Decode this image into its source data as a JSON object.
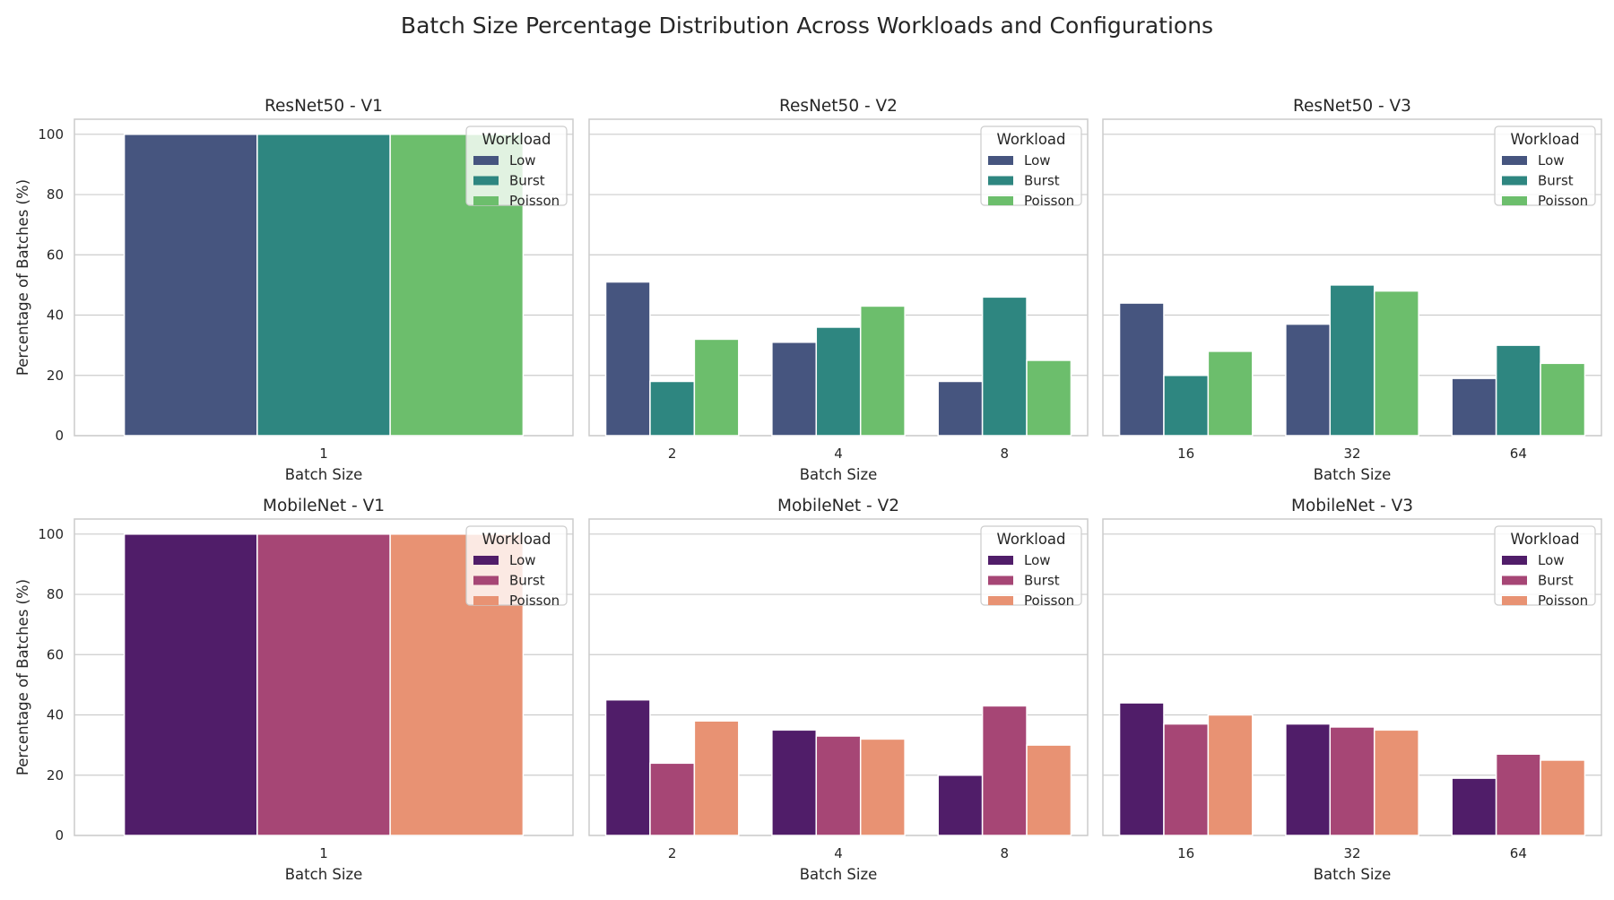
{
  "figure": {
    "title": "Batch Size Percentage Distribution Across Workloads and Configurations"
  },
  "chart_data": [
    {
      "type": "bar",
      "title": "ResNet50 - V1",
      "xlabel": "Batch Size",
      "ylabel": "Percentage of Batches (%)",
      "ylim": [
        0,
        105
      ],
      "yticks": [
        0,
        20,
        40,
        60,
        80,
        100
      ],
      "categories": [
        "1"
      ],
      "series": [
        {
          "name": "Low",
          "color": "#46557f",
          "values": [
            100
          ]
        },
        {
          "name": "Burst",
          "color": "#2e8680",
          "values": [
            100
          ]
        },
        {
          "name": "Poisson",
          "color": "#6cbe6c",
          "values": [
            100
          ]
        }
      ],
      "legend": {
        "title": "Workload",
        "position": "top-right"
      },
      "grid": true
    },
    {
      "type": "bar",
      "title": "ResNet50 - V2",
      "xlabel": "Batch Size",
      "ylabel": "",
      "ylim": [
        0,
        105
      ],
      "yticks": [
        0,
        20,
        40,
        60,
        80,
        100
      ],
      "categories": [
        "2",
        "4",
        "8"
      ],
      "series": [
        {
          "name": "Low",
          "color": "#46557f",
          "values": [
            51,
            31,
            18
          ]
        },
        {
          "name": "Burst",
          "color": "#2e8680",
          "values": [
            18,
            36,
            46
          ]
        },
        {
          "name": "Poisson",
          "color": "#6cbe6c",
          "values": [
            32,
            43,
            25
          ]
        }
      ],
      "legend": {
        "title": "Workload",
        "position": "top-right"
      },
      "grid": true
    },
    {
      "type": "bar",
      "title": "ResNet50 - V3",
      "xlabel": "Batch Size",
      "ylabel": "",
      "ylim": [
        0,
        105
      ],
      "yticks": [
        0,
        20,
        40,
        60,
        80,
        100
      ],
      "categories": [
        "16",
        "32",
        "64"
      ],
      "series": [
        {
          "name": "Low",
          "color": "#46557f",
          "values": [
            44,
            37,
            19
          ]
        },
        {
          "name": "Burst",
          "color": "#2e8680",
          "values": [
            20,
            50,
            30
          ]
        },
        {
          "name": "Poisson",
          "color": "#6cbe6c",
          "values": [
            28,
            48,
            24
          ]
        }
      ],
      "legend": {
        "title": "Workload",
        "position": "top-right"
      },
      "grid": true
    },
    {
      "type": "bar",
      "title": "MobileNet - V1",
      "xlabel": "Batch Size",
      "ylabel": "Percentage of Batches (%)",
      "ylim": [
        0,
        105
      ],
      "yticks": [
        0,
        20,
        40,
        60,
        80,
        100
      ],
      "categories": [
        "1"
      ],
      "series": [
        {
          "name": "Low",
          "color": "#501d69",
          "values": [
            100
          ]
        },
        {
          "name": "Burst",
          "color": "#a64675",
          "values": [
            100
          ]
        },
        {
          "name": "Poisson",
          "color": "#e89273",
          "values": [
            100
          ]
        }
      ],
      "legend": {
        "title": "Workload",
        "position": "top-right"
      },
      "grid": true
    },
    {
      "type": "bar",
      "title": "MobileNet - V2",
      "xlabel": "Batch Size",
      "ylabel": "",
      "ylim": [
        0,
        105
      ],
      "yticks": [
        0,
        20,
        40,
        60,
        80,
        100
      ],
      "categories": [
        "2",
        "4",
        "8"
      ],
      "series": [
        {
          "name": "Low",
          "color": "#501d69",
          "values": [
            45,
            35,
            20
          ]
        },
        {
          "name": "Burst",
          "color": "#a64675",
          "values": [
            24,
            33,
            43
          ]
        },
        {
          "name": "Poisson",
          "color": "#e89273",
          "values": [
            38,
            32,
            30
          ]
        }
      ],
      "legend": {
        "title": "Workload",
        "position": "top-right"
      },
      "grid": true
    },
    {
      "type": "bar",
      "title": "MobileNet - V3",
      "xlabel": "Batch Size",
      "ylabel": "",
      "ylim": [
        0,
        105
      ],
      "yticks": [
        0,
        20,
        40,
        60,
        80,
        100
      ],
      "categories": [
        "16",
        "32",
        "64"
      ],
      "series": [
        {
          "name": "Low",
          "color": "#501d69",
          "values": [
            44,
            37,
            19
          ]
        },
        {
          "name": "Burst",
          "color": "#a64675",
          "values": [
            37,
            36,
            27
          ]
        },
        {
          "name": "Poisson",
          "color": "#e89273",
          "values": [
            40,
            35,
            25
          ]
        }
      ],
      "legend": {
        "title": "Workload",
        "position": "top-right"
      },
      "grid": true
    }
  ]
}
